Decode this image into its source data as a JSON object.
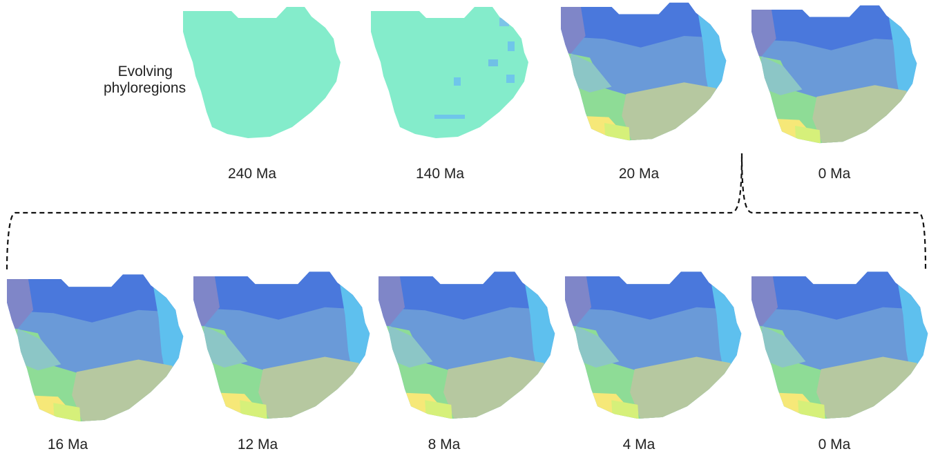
{
  "row_title": "Evolving phyloregions",
  "top_row": [
    {
      "label": "240 Ma"
    },
    {
      "label": "140 Ma"
    },
    {
      "label": "20 Ma"
    },
    {
      "label": "0 Ma"
    }
  ],
  "bottom_row": [
    {
      "label": "16 Ma"
    },
    {
      "label": "12 Ma"
    },
    {
      "label": "8 Ma"
    },
    {
      "label": "4 Ma"
    },
    {
      "label": "0 Ma"
    }
  ],
  "colors": {
    "mint": "#84eccb",
    "deep_blue": "#4a78dc",
    "mid_blue": "#6a9ad8",
    "light_blue": "#5ec0ee",
    "cyan": "#6ee6f2",
    "teal": "#8cc6c6",
    "green": "#8edc96",
    "olive": "#b6c8a0",
    "yellow": "#f6e878",
    "lime": "#d6f07a",
    "purple": "#7f86c8",
    "brace": "#111111"
  }
}
